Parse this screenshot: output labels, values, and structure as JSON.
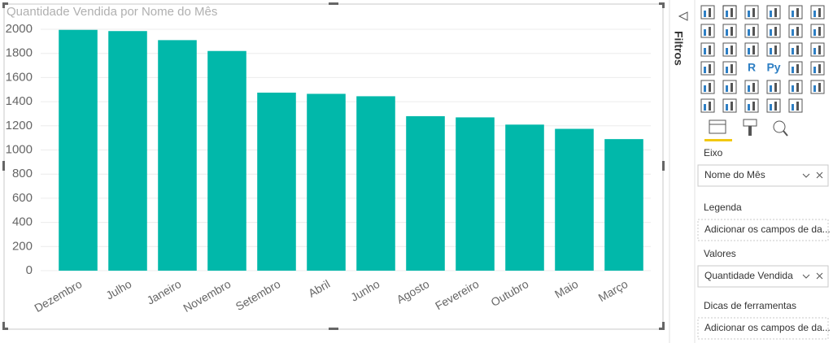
{
  "chart_data": {
    "type": "bar",
    "title": "Quantidade Vendida por Nome do Mês",
    "categories": [
      "Dezembro",
      "Julho",
      "Janeiro",
      "Novembro",
      "Setembro",
      "Abril",
      "Junho",
      "Agosto",
      "Fevereiro",
      "Outubro",
      "Maio",
      "Março"
    ],
    "values": [
      1995,
      1985,
      1910,
      1820,
      1475,
      1465,
      1445,
      1280,
      1270,
      1210,
      1175,
      1090
    ],
    "color": "#01b8aa",
    "ylim": [
      0,
      2000
    ],
    "yticks": [
      0,
      200,
      400,
      600,
      800,
      1000,
      1200,
      1400,
      1600,
      1800,
      2000
    ],
    "grid": true
  },
  "filters": {
    "label": "Filtros"
  },
  "visualizations": {
    "r_icon": "R",
    "py_icon": "Py",
    "more_icon": "···"
  },
  "fields": [
    {
      "label": "Eixo",
      "value": "Nome do Mês"
    },
    {
      "label": "Legenda",
      "value": "Adicionar os campos de da..."
    },
    {
      "label": "Valores",
      "value": "Quantidade Vendida"
    },
    {
      "label": "Dicas de ferramentas",
      "value": "Adicionar os campos de da..."
    }
  ]
}
